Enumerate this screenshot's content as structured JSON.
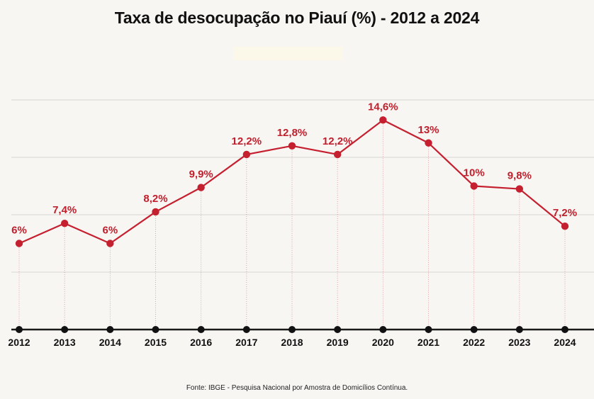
{
  "chart_data": {
    "type": "line",
    "title": "Taxa de desocupação no Piauí (%) - 2012 a 2024",
    "xlabel": "",
    "ylabel": "",
    "categories": [
      "2012",
      "2013",
      "2014",
      "2015",
      "2016",
      "2017",
      "2018",
      "2019",
      "2020",
      "2021",
      "2022",
      "2023",
      "2024"
    ],
    "values": [
      6,
      7.4,
      6,
      8.2,
      9.9,
      12.2,
      12.8,
      12.2,
      14.6,
      13,
      10,
      9.8,
      7.2
    ],
    "data_labels": [
      "6%",
      "7,4%",
      "6%",
      "8,2%",
      "9,9%",
      "12,2%",
      "12,8%",
      "12,2%",
      "14,6%",
      "13%",
      "10%",
      "9,8%",
      "7,2%"
    ],
    "ylim": [
      0,
      20
    ],
    "grid": true,
    "legend": "none",
    "colors": {
      "line": "#c5202f",
      "labels": "#c0202d",
      "axis": "#111111",
      "grid": "#d9d7d3",
      "background": "#f7f6f3"
    }
  },
  "footer": {
    "source": "Fonte: IBGE - Pesquisa Nacional por Amostra de Domicílios Contínua."
  }
}
